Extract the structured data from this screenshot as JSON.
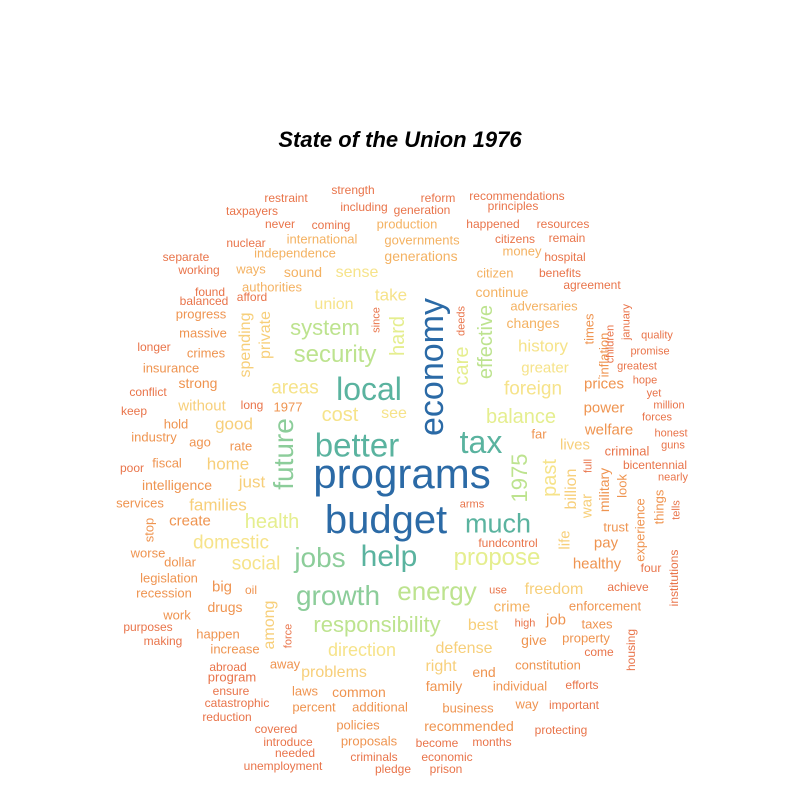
{
  "title": "State of the Union 1976",
  "palette": {
    "c1": "#2b6aa6",
    "c2": "#3d8fb5",
    "c3": "#5ab39f",
    "c4": "#8ccd9a",
    "c5": "#bde38f",
    "c6": "#e5ee8f",
    "c7": "#f6e38a",
    "c8": "#f7cf7a",
    "c9": "#f4b262",
    "c10": "#ef9450",
    "c11": "#e9744a",
    "c12": "#dc5a3e"
  },
  "words": [
    {
      "text": "programs",
      "color": "c1"
    },
    {
      "text": "budget",
      "color": "c1"
    },
    {
      "text": "economy",
      "color": "c1"
    },
    {
      "text": "better",
      "color": "c3"
    },
    {
      "text": "tax",
      "color": "c3"
    },
    {
      "text": "local",
      "color": "c3"
    },
    {
      "text": "help",
      "color": "c3"
    },
    {
      "text": "much",
      "color": "c3"
    },
    {
      "text": "jobs",
      "color": "c4"
    },
    {
      "text": "growth",
      "color": "c4"
    },
    {
      "text": "future",
      "color": "c4"
    },
    {
      "text": "energy",
      "color": "c5"
    },
    {
      "text": "1975",
      "color": "c5"
    },
    {
      "text": "security",
      "color": "c5"
    },
    {
      "text": "system",
      "color": "c5"
    },
    {
      "text": "responsibility",
      "color": "c5"
    },
    {
      "text": "propose",
      "color": "c6"
    },
    {
      "text": "balance",
      "color": "c6"
    },
    {
      "text": "effective",
      "color": "c5"
    },
    {
      "text": "health",
      "color": "c6"
    },
    {
      "text": "care",
      "color": "c6"
    },
    {
      "text": "hard",
      "color": "c6"
    },
    {
      "text": "foreign",
      "color": "c7"
    },
    {
      "text": "cost",
      "color": "c7"
    },
    {
      "text": "areas",
      "color": "c7"
    },
    {
      "text": "past",
      "color": "c7"
    },
    {
      "text": "social",
      "color": "c7"
    },
    {
      "text": "domestic",
      "color": "c7"
    },
    {
      "text": "direction",
      "color": "c7"
    },
    {
      "text": "take",
      "color": "c7"
    },
    {
      "text": "sense",
      "color": "c7"
    },
    {
      "text": "union",
      "color": "c7"
    },
    {
      "text": "see",
      "color": "c7"
    },
    {
      "text": "history",
      "color": "c7"
    },
    {
      "text": "greater",
      "color": "c7"
    },
    {
      "text": "good",
      "color": "c8"
    },
    {
      "text": "home",
      "color": "c8"
    },
    {
      "text": "just",
      "color": "c8"
    },
    {
      "text": "families",
      "color": "c8"
    },
    {
      "text": "without",
      "color": "c8"
    },
    {
      "text": "spending",
      "color": "c8"
    },
    {
      "text": "private",
      "color": "c8"
    },
    {
      "text": "defense",
      "color": "c8"
    },
    {
      "text": "problems",
      "color": "c8"
    },
    {
      "text": "right",
      "color": "c8"
    },
    {
      "text": "best",
      "color": "c8"
    },
    {
      "text": "freedom",
      "color": "c8"
    },
    {
      "text": "among",
      "color": "c8"
    },
    {
      "text": "billion",
      "color": "c8"
    },
    {
      "text": "lives",
      "color": "c8"
    },
    {
      "text": "war",
      "color": "c8"
    },
    {
      "text": "life",
      "color": "c8"
    },
    {
      "text": "continue",
      "color": "c9"
    },
    {
      "text": "changes",
      "color": "c9"
    },
    {
      "text": "adversaries",
      "color": "c9"
    },
    {
      "text": "citizen",
      "color": "c9"
    },
    {
      "text": "generations",
      "color": "c9"
    },
    {
      "text": "sound",
      "color": "c9"
    },
    {
      "text": "authorities",
      "color": "c9"
    },
    {
      "text": "ways",
      "color": "c9"
    },
    {
      "text": "independence",
      "color": "c9"
    },
    {
      "text": "international",
      "color": "c9"
    },
    {
      "text": "governments",
      "color": "c9"
    },
    {
      "text": "production",
      "color": "c9"
    },
    {
      "text": "money",
      "color": "c9"
    },
    {
      "text": "power",
      "color": "c10"
    },
    {
      "text": "welfare",
      "color": "c10"
    },
    {
      "text": "prices",
      "color": "c10"
    },
    {
      "text": "military",
      "color": "c10"
    },
    {
      "text": "healthy",
      "color": "c10"
    },
    {
      "text": "pay",
      "color": "c10"
    },
    {
      "text": "trust",
      "color": "c10"
    },
    {
      "text": "job",
      "color": "c10"
    },
    {
      "text": "give",
      "color": "c10"
    },
    {
      "text": "crime",
      "color": "c9"
    },
    {
      "text": "enforcement",
      "color": "c10"
    },
    {
      "text": "taxes",
      "color": "c10"
    },
    {
      "text": "property",
      "color": "c10"
    },
    {
      "text": "high",
      "color": "c11"
    },
    {
      "text": "end",
      "color": "c10"
    },
    {
      "text": "constitution",
      "color": "c10"
    },
    {
      "text": "family",
      "color": "c10"
    },
    {
      "text": "individual",
      "color": "c10"
    },
    {
      "text": "way",
      "color": "c10"
    },
    {
      "text": "common",
      "color": "c10"
    },
    {
      "text": "business",
      "color": "c10"
    },
    {
      "text": "recommended",
      "color": "c10"
    },
    {
      "text": "policies",
      "color": "c10"
    },
    {
      "text": "proposals",
      "color": "c10"
    },
    {
      "text": "additional",
      "color": "c10"
    },
    {
      "text": "percent",
      "color": "c10"
    },
    {
      "text": "laws",
      "color": "c10"
    },
    {
      "text": "away",
      "color": "c10"
    },
    {
      "text": "happen",
      "color": "c10"
    },
    {
      "text": "increase",
      "color": "c10"
    },
    {
      "text": "drugs",
      "color": "c10"
    },
    {
      "text": "big",
      "color": "c10"
    },
    {
      "text": "create",
      "color": "c10"
    },
    {
      "text": "intelligence",
      "color": "c10"
    },
    {
      "text": "fiscal",
      "color": "c10"
    },
    {
      "text": "strong",
      "color": "c10"
    },
    {
      "text": "crimes",
      "color": "c10"
    },
    {
      "text": "massive",
      "color": "c10"
    },
    {
      "text": "progress",
      "color": "c10"
    },
    {
      "text": "rate",
      "color": "c10"
    },
    {
      "text": "ago",
      "color": "c10"
    },
    {
      "text": "hold",
      "color": "c10"
    },
    {
      "text": "industry",
      "color": "c10"
    },
    {
      "text": "insurance",
      "color": "c10"
    },
    {
      "text": "1977",
      "color": "c10"
    },
    {
      "text": "long",
      "color": "c11"
    },
    {
      "text": "fundcontrol",
      "color": "c11"
    },
    {
      "text": "arms",
      "color": "c11"
    },
    {
      "text": "use",
      "color": "c11"
    },
    {
      "text": "far",
      "color": "c10"
    },
    {
      "text": "full",
      "color": "c11"
    },
    {
      "text": "look",
      "color": "c10"
    },
    {
      "text": "criminal",
      "color": "c11"
    },
    {
      "text": "experience",
      "color": "c10"
    },
    {
      "text": "things",
      "color": "c10"
    },
    {
      "text": "inflation",
      "color": "c10"
    },
    {
      "text": "times",
      "color": "c10"
    },
    {
      "text": "children",
      "color": "c11"
    },
    {
      "text": "agreement",
      "color": "c11"
    },
    {
      "text": "benefits",
      "color": "c11"
    },
    {
      "text": "hospital",
      "color": "c11"
    },
    {
      "text": "remain",
      "color": "c11"
    },
    {
      "text": "citizens",
      "color": "c11"
    },
    {
      "text": "happened",
      "color": "c11"
    },
    {
      "text": "resources",
      "color": "c11"
    },
    {
      "text": "recommendations",
      "color": "c11"
    },
    {
      "text": "principles",
      "color": "c11"
    },
    {
      "text": "reform",
      "color": "c11"
    },
    {
      "text": "generation",
      "color": "c11"
    },
    {
      "text": "strength",
      "color": "c11"
    },
    {
      "text": "including",
      "color": "c11"
    },
    {
      "text": "restraint",
      "color": "c11"
    },
    {
      "text": "taxpayers",
      "color": "c11"
    },
    {
      "text": "never",
      "color": "c11"
    },
    {
      "text": "coming",
      "color": "c11"
    },
    {
      "text": "nuclear",
      "color": "c11"
    },
    {
      "text": "separate",
      "color": "c11"
    },
    {
      "text": "working",
      "color": "c11"
    },
    {
      "text": "found",
      "color": "c11"
    },
    {
      "text": "afford",
      "color": "c11"
    },
    {
      "text": "balanced",
      "color": "c11"
    },
    {
      "text": "longer",
      "color": "c11"
    },
    {
      "text": "conflict",
      "color": "c11"
    },
    {
      "text": "keep",
      "color": "c11"
    },
    {
      "text": "poor",
      "color": "c11"
    },
    {
      "text": "services",
      "color": "c10"
    },
    {
      "text": "stop",
      "color": "c10"
    },
    {
      "text": "worse",
      "color": "c10"
    },
    {
      "text": "dollar",
      "color": "c10"
    },
    {
      "text": "legislation",
      "color": "c10"
    },
    {
      "text": "recession",
      "color": "c10"
    },
    {
      "text": "oil",
      "color": "c10"
    },
    {
      "text": "work",
      "color": "c10"
    },
    {
      "text": "purposes",
      "color": "c11"
    },
    {
      "text": "making",
      "color": "c11"
    },
    {
      "text": "force",
      "color": "c11"
    },
    {
      "text": "abroad",
      "color": "c11"
    },
    {
      "text": "program",
      "color": "c11"
    },
    {
      "text": "ensure",
      "color": "c11"
    },
    {
      "text": "catastrophic",
      "color": "c11"
    },
    {
      "text": "reduction",
      "color": "c11"
    },
    {
      "text": "covered",
      "color": "c11"
    },
    {
      "text": "introduce",
      "color": "c11"
    },
    {
      "text": "needed",
      "color": "c11"
    },
    {
      "text": "unemployment",
      "color": "c11"
    },
    {
      "text": "criminals",
      "color": "c11"
    },
    {
      "text": "pledge",
      "color": "c11"
    },
    {
      "text": "prison",
      "color": "c11"
    },
    {
      "text": "become",
      "color": "c11"
    },
    {
      "text": "economic",
      "color": "c11"
    },
    {
      "text": "months",
      "color": "c11"
    },
    {
      "text": "protecting",
      "color": "c11"
    },
    {
      "text": "important",
      "color": "c11"
    },
    {
      "text": "efforts",
      "color": "c11"
    },
    {
      "text": "come",
      "color": "c11"
    },
    {
      "text": "housing",
      "color": "c11"
    },
    {
      "text": "achieve",
      "color": "c11"
    },
    {
      "text": "four",
      "color": "c11"
    },
    {
      "text": "institutions",
      "color": "c11"
    },
    {
      "text": "tells",
      "color": "c11"
    },
    {
      "text": "nearly",
      "color": "c11"
    },
    {
      "text": "bicentennial",
      "color": "c11"
    },
    {
      "text": "guns",
      "color": "c11"
    },
    {
      "text": "honest",
      "color": "c11"
    },
    {
      "text": "forces",
      "color": "c11"
    },
    {
      "text": "million",
      "color": "c11"
    },
    {
      "text": "yet",
      "color": "c11"
    },
    {
      "text": "hope",
      "color": "c11"
    },
    {
      "text": "greatest",
      "color": "c11"
    },
    {
      "text": "promise",
      "color": "c11"
    },
    {
      "text": "quality",
      "color": "c11"
    },
    {
      "text": "january",
      "color": "c11"
    },
    {
      "text": "deeds",
      "color": "c11"
    },
    {
      "text": "since",
      "color": "c11"
    }
  ]
}
